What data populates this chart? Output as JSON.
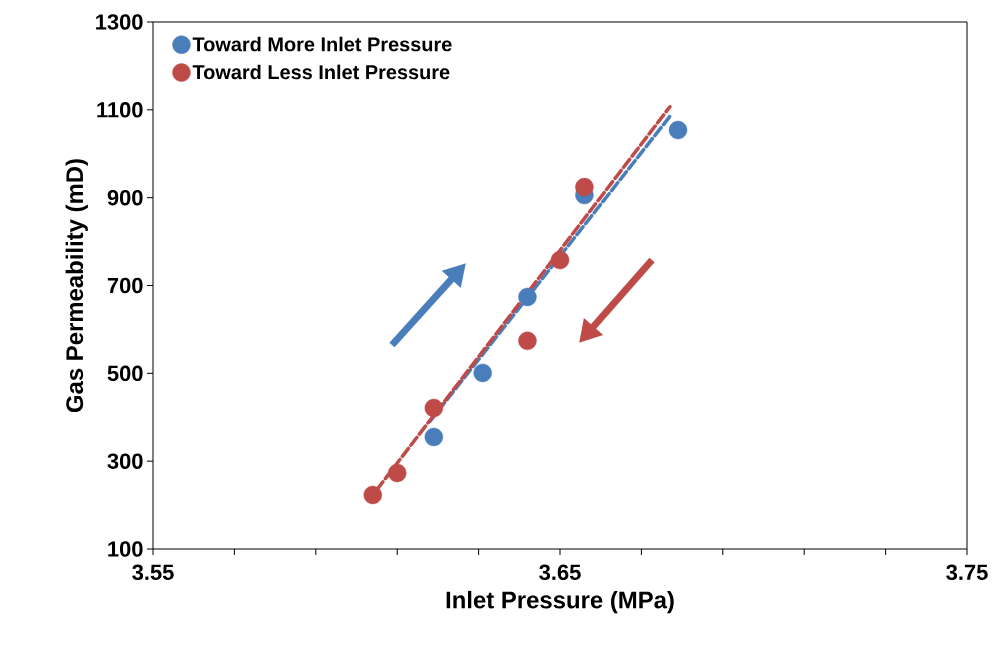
{
  "chart_data": {
    "type": "scatter",
    "xlabel": "Inlet Pressure (MPa)",
    "ylabel": "Gas Permeability (mD)",
    "xlim": [
      3.55,
      3.75
    ],
    "ylim": [
      100,
      1300
    ],
    "xticks": [
      3.55,
      {
        "value": 3.57,
        "label": null
      },
      {
        "value": 3.59,
        "label": null
      },
      {
        "value": 3.61,
        "label": null
      },
      {
        "value": 3.63,
        "label": null
      },
      3.65,
      {
        "value": 3.67,
        "label": null
      },
      {
        "value": 3.69,
        "label": null
      },
      {
        "value": 3.71,
        "label": null
      },
      {
        "value": 3.73,
        "label": null
      },
      3.75
    ],
    "yticks": [
      100,
      300,
      500,
      700,
      900,
      1100,
      1300
    ],
    "grid": false,
    "legend": "top left",
    "series": [
      {
        "name": "Toward More Inlet Pressure",
        "color": "#4a7ebb",
        "marker": "circle",
        "x": [
          3.619,
          3.631,
          3.642,
          3.656,
          3.679
        ],
        "values": [
          355,
          501,
          674,
          906,
          1054
        ]
      },
      {
        "name": "Toward Less Inlet Pressure",
        "color": "#be4b48",
        "marker": "circle",
        "x": [
          3.604,
          3.61,
          3.619,
          3.642,
          3.65,
          3.656
        ],
        "values": [
          223,
          273,
          421,
          574,
          758,
          924
        ]
      },
      {
        "type": "line",
        "color": "#4a7ebb",
        "line_style": "dashed",
        "marker": "none",
        "x": [
          3.618,
          3.677
        ],
        "values": [
          390,
          1085
        ]
      },
      {
        "type": "line",
        "color": "#be4b48",
        "line_style": "dashed",
        "marker": "none",
        "x": [
          3.605,
          3.677
        ],
        "values": [
          235,
          1107
        ]
      }
    ]
  }
}
